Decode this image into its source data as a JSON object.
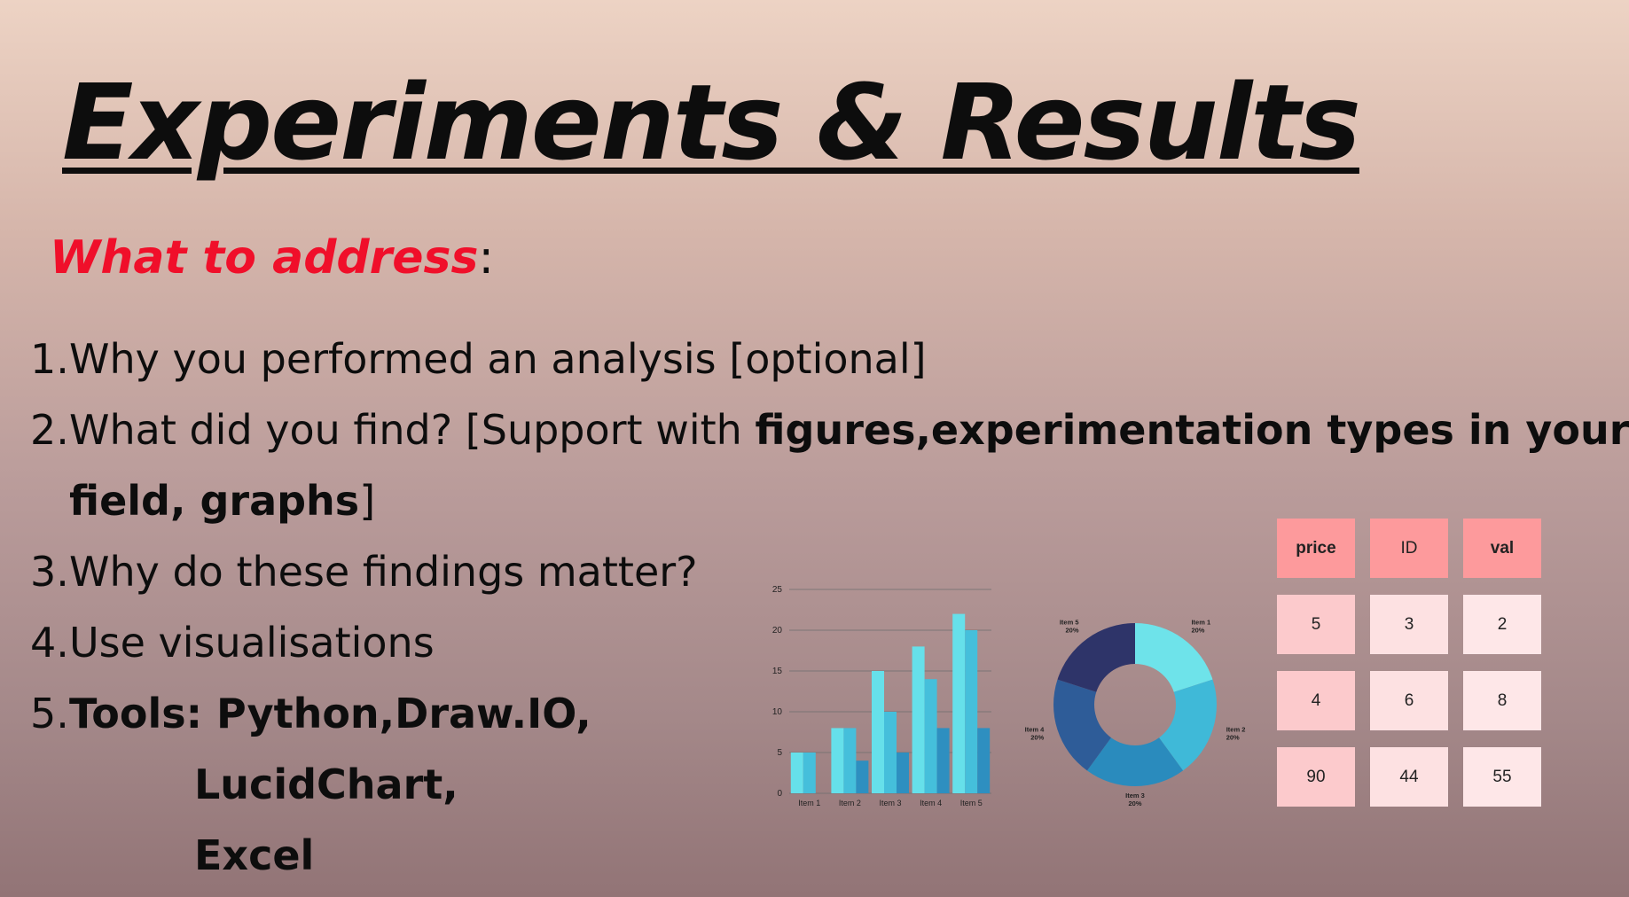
{
  "slide": {
    "title": "Experiments & Results",
    "subhead_accent": "What to address",
    "subhead_rest": ":",
    "items": [
      {
        "num": "1.",
        "text": "Why you performed an analysis [optional]"
      },
      {
        "num": "2.",
        "text": "What did you find? [Support with ",
        "bold": "figures,experimentation types in your",
        "cont_bold": "field, graphs",
        "cont_rest": "]"
      },
      {
        "num": "3.",
        "text": "Why do these findings matter?"
      },
      {
        "num": "4.",
        "text": "Use visualisations"
      },
      {
        "num": "5.",
        "bold": "Tools: Python,Draw.IO,",
        "lines": [
          "LucidChart,",
          "Excel"
        ]
      }
    ]
  },
  "chart_data": [
    {
      "type": "bar",
      "categories": [
        "Item 1",
        "Item 2",
        "Item 3",
        "Item 4",
        "Item 5"
      ],
      "series": [
        {
          "values": [
            5,
            8,
            15,
            18,
            22
          ],
          "color": "#66e0ea"
        },
        {
          "values": [
            5,
            8,
            10,
            14,
            20
          ],
          "color": "#45bfdb"
        },
        {
          "values": [
            0,
            4,
            5,
            8,
            8
          ],
          "color": "#2e8fc0"
        }
      ],
      "ylim": [
        0,
        25
      ],
      "yticks": [
        "0",
        "5",
        "10",
        "15",
        "20",
        "25"
      ],
      "grid": true
    },
    {
      "type": "pie",
      "donut": true,
      "categories": [
        "Item 1",
        "Item 2",
        "Item 3",
        "Item 4",
        "Item 5"
      ],
      "values": [
        20,
        20,
        20,
        20,
        20
      ],
      "labels": [
        "20%",
        "20%",
        "20%",
        "20%",
        "20%"
      ],
      "colors": [
        "#6ee3ea",
        "#3fb9d8",
        "#2a8bbd",
        "#2e5c98",
        "#2e3469"
      ]
    }
  ],
  "table": {
    "headers": [
      "price",
      "ID",
      "val"
    ],
    "rows": [
      [
        "5",
        "3",
        "2"
      ],
      [
        "4",
        "6",
        "8"
      ],
      [
        "90",
        "44",
        "55"
      ]
    ]
  }
}
